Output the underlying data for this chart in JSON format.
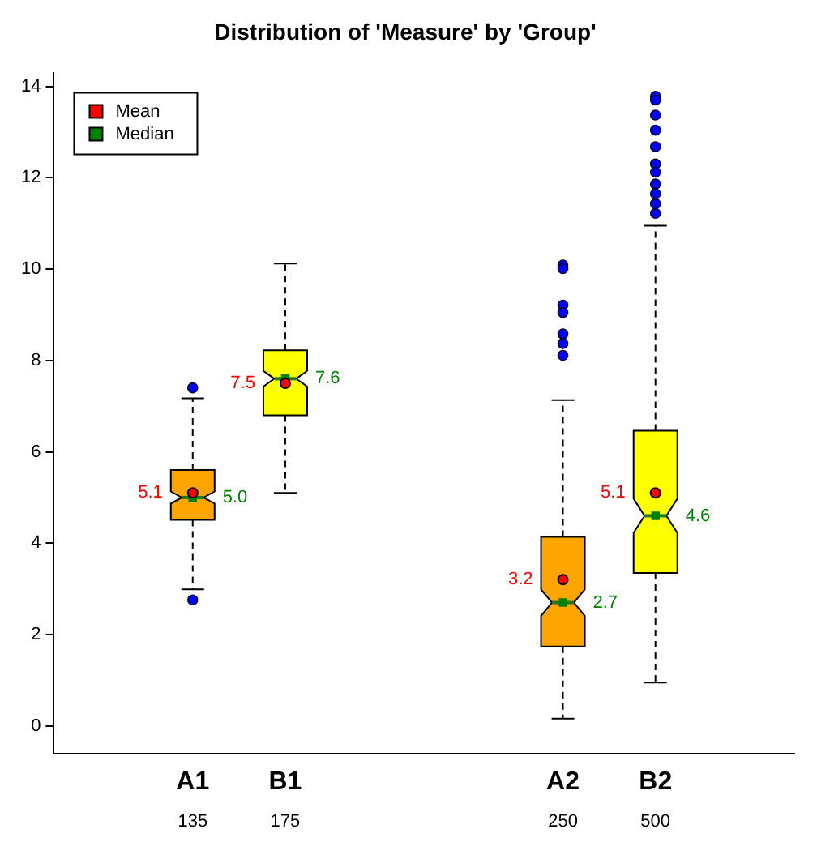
{
  "chart_data": {
    "type": "box",
    "title": "Distribution of 'Measure' by 'Group'",
    "categories": [
      null,
      "A1",
      "B1",
      null,
      null,
      "A2",
      "B2",
      null
    ],
    "ylim": [
      -0.6,
      14.3
    ],
    "yticks": [
      0,
      2,
      4,
      6,
      8,
      10,
      12,
      14
    ],
    "grid": false,
    "legend": "top left",
    "series": [
      {
        "type": "box",
        "colors": [
          null,
          "#ffa500",
          "#ffff00",
          null,
          null,
          "#ffa500",
          "#ffff00",
          null
        ],
        "boxes": [
          null,
          {
            "low": 2.99,
            "q1": 4.51,
            "median": 5.0,
            "q3": 5.6,
            "high": 7.17,
            "outliers": [
              7.4,
              2.76
            ]
          },
          {
            "low": 5.1,
            "q1": 6.8,
            "median": 7.6,
            "q3": 8.22,
            "high": 10.12
          },
          null,
          null,
          {
            "low": 0.16,
            "q1": 1.74,
            "median": 2.7,
            "q3": 4.14,
            "high": 7.13,
            "outliers": [
              10.09,
              10.01,
              9.21,
              9.05,
              8.58,
              8.37,
              8.11
            ]
          },
          {
            "low": 0.95,
            "q1": 3.35,
            "median": 4.6,
            "q3": 6.46,
            "high": 10.95,
            "outliers": [
              13.78,
              13.7,
              13.37,
              13.04,
              12.68,
              12.3,
              12.12,
              11.86,
              11.65,
              11.43,
              11.22
            ]
          },
          null
        ]
      },
      {
        "name": "Mean",
        "type": "scatter",
        "color": "#ff0000",
        "marker": "circle",
        "x": [
          "A1",
          "B1",
          "A2",
          "B2"
        ],
        "values": [
          5.1,
          7.5,
          3.2,
          5.1
        ],
        "value_labels": [
          "5.1",
          "7.5",
          "3.2",
          "5.1"
        ]
      },
      {
        "name": "Median",
        "type": "scatter",
        "color": "#008000",
        "marker": "square",
        "x": [
          "A1",
          "B1",
          "A2",
          "B2"
        ],
        "values": [
          5.0,
          7.6,
          2.7,
          4.6
        ],
        "value_labels": [
          "5.0",
          "7.6",
          "2.7",
          "4.6"
        ]
      }
    ],
    "annotations": [
      "135",
      "175",
      "250",
      "500"
    ]
  }
}
